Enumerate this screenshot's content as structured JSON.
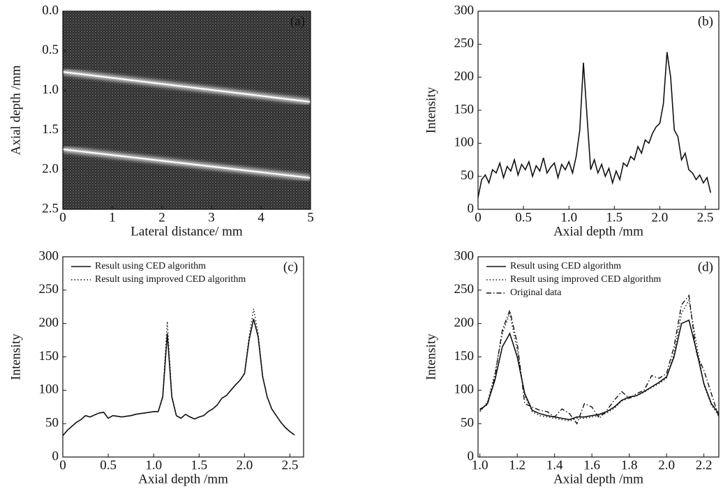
{
  "chart_data": [
    {
      "type": "image",
      "label": "(a)",
      "xlabel": "Lateral distance/ mm",
      "ylabel": "Axial depth /mm",
      "xlim": [
        0,
        5
      ],
      "ylim": [
        2.5,
        0
      ],
      "xticks": [
        0,
        1,
        2,
        3,
        4,
        5
      ],
      "yticks": [
        {
          "value": 0,
          "label": "0.0"
        },
        0.5,
        {
          "value": 1,
          "label": "1.0"
        },
        1.5,
        {
          "value": 2,
          "label": "2.0"
        },
        2.5
      ]
    },
    {
      "type": "line",
      "label": "(b)",
      "xlabel": "Axial depth /mm",
      "ylabel": "Intensity",
      "xlim": [
        0,
        2.65
      ],
      "ylim": [
        0,
        300
      ],
      "xticks": [
        0,
        0.5,
        {
          "value": 1,
          "label": "1.0"
        },
        1.5,
        {
          "value": 2,
          "label": "2.0"
        },
        2.5
      ],
      "yticks": [
        0,
        50,
        100,
        150,
        200,
        250,
        300
      ],
      "x": [
        0,
        0.04,
        0.08,
        0.12,
        0.16,
        0.2,
        0.24,
        0.28,
        0.32,
        0.36,
        0.4,
        0.44,
        0.48,
        0.52,
        0.56,
        0.6,
        0.64,
        0.68,
        0.72,
        0.76,
        0.8,
        0.84,
        0.88,
        0.92,
        0.96,
        1.0,
        1.04,
        1.08,
        1.12,
        1.16,
        1.2,
        1.24,
        1.28,
        1.32,
        1.36,
        1.4,
        1.44,
        1.48,
        1.52,
        1.56,
        1.6,
        1.64,
        1.68,
        1.72,
        1.76,
        1.8,
        1.84,
        1.88,
        1.92,
        1.96,
        2.0,
        2.04,
        2.08,
        2.12,
        2.16,
        2.2,
        2.24,
        2.28,
        2.32,
        2.36,
        2.4,
        2.44,
        2.48,
        2.52,
        2.56
      ],
      "series": [
        {
          "color": "#111111",
          "style": "solid",
          "values": [
            18,
            45,
            52,
            40,
            60,
            55,
            70,
            48,
            65,
            58,
            75,
            52,
            68,
            60,
            72,
            50,
            66,
            58,
            78,
            55,
            64,
            70,
            48,
            68,
            60,
            72,
            55,
            80,
            120,
            222,
            140,
            60,
            75,
            55,
            68,
            50,
            62,
            40,
            58,
            45,
            70,
            65,
            80,
            75,
            95,
            85,
            105,
            100,
            115,
            125,
            130,
            160,
            238,
            200,
            120,
            110,
            75,
            85,
            60,
            55,
            45,
            52,
            40,
            48,
            25
          ]
        }
      ]
    },
    {
      "type": "line",
      "label": "(c)",
      "xlabel": "Axial depth /mm",
      "ylabel": "Intensity",
      "xlim": [
        0,
        2.65
      ],
      "ylim": [
        0,
        300
      ],
      "xticks": [
        0,
        0.5,
        {
          "value": 1,
          "label": "1.0"
        },
        1.5,
        {
          "value": 2,
          "label": "2.0"
        },
        2.5
      ],
      "yticks": [
        0,
        50,
        100,
        150,
        200,
        250,
        300
      ],
      "x": [
        0,
        0.05,
        0.1,
        0.15,
        0.2,
        0.25,
        0.3,
        0.35,
        0.4,
        0.45,
        0.5,
        0.55,
        0.6,
        0.65,
        0.7,
        0.75,
        0.8,
        0.85,
        0.9,
        0.95,
        1.0,
        1.05,
        1.1,
        1.15,
        1.2,
        1.25,
        1.3,
        1.35,
        1.4,
        1.45,
        1.5,
        1.55,
        1.6,
        1.65,
        1.7,
        1.75,
        1.8,
        1.85,
        1.9,
        1.95,
        2.0,
        2.05,
        2.1,
        2.15,
        2.2,
        2.25,
        2.3,
        2.35,
        2.4,
        2.45,
        2.5,
        2.55
      ],
      "series": [
        {
          "name": "Result using CED algorithm",
          "color": "#111111",
          "style": "solid",
          "values": [
            32,
            40,
            46,
            52,
            56,
            62,
            60,
            63,
            66,
            67,
            58,
            62,
            61,
            60,
            61,
            62,
            64,
            65,
            66,
            67,
            68,
            68,
            90,
            185,
            90,
            62,
            58,
            64,
            60,
            57,
            60,
            62,
            68,
            72,
            78,
            88,
            92,
            100,
            108,
            115,
            125,
            175,
            207,
            180,
            120,
            90,
            72,
            62,
            52,
            44,
            38,
            33
          ]
        },
        {
          "name": "Result using improved CED algorithm",
          "color": "#111111",
          "style": "dotted",
          "values": [
            32,
            40,
            46,
            52,
            56,
            62,
            60,
            63,
            66,
            67,
            58,
            62,
            61,
            60,
            61,
            62,
            64,
            65,
            66,
            67,
            68,
            68,
            92,
            203,
            92,
            62,
            58,
            64,
            60,
            57,
            60,
            62,
            68,
            72,
            78,
            88,
            92,
            100,
            108,
            115,
            126,
            180,
            222,
            185,
            121,
            90,
            72,
            62,
            52,
            44,
            38,
            33
          ]
        }
      ]
    },
    {
      "type": "line",
      "label": "(d)",
      "xlabel": "Axial depth /mm",
      "ylabel": "Intensity",
      "xlim": [
        0.99,
        2.28
      ],
      "ylim": [
        0,
        300
      ],
      "xticks": [
        {
          "value": 1,
          "label": "1.0"
        },
        1.2,
        1.4,
        1.6,
        1.8,
        {
          "value": 2,
          "label": "2.0"
        },
        2.2
      ],
      "yticks": [
        0,
        50,
        100,
        150,
        200,
        250,
        300
      ],
      "x": [
        1.0,
        1.04,
        1.08,
        1.12,
        1.16,
        1.2,
        1.24,
        1.28,
        1.32,
        1.36,
        1.4,
        1.44,
        1.48,
        1.52,
        1.56,
        1.6,
        1.64,
        1.68,
        1.72,
        1.76,
        1.8,
        1.84,
        1.88,
        1.92,
        1.96,
        2.0,
        2.04,
        2.08,
        2.12,
        2.16,
        2.2,
        2.24,
        2.28
      ],
      "series": [
        {
          "name": "Result using CED algorithm",
          "color": "#111111",
          "style": "solid",
          "values": [
            70,
            80,
            115,
            165,
            185,
            150,
            95,
            70,
            65,
            62,
            60,
            58,
            56,
            60,
            60,
            62,
            64,
            68,
            75,
            85,
            90,
            92,
            98,
            105,
            112,
            120,
            150,
            200,
            205,
            160,
            110,
            80,
            65
          ]
        },
        {
          "name": "Result using improved CED algorithm",
          "color": "#111111",
          "style": "dotted",
          "values": [
            68,
            82,
            125,
            185,
            215,
            160,
            92,
            68,
            62,
            60,
            58,
            56,
            54,
            58,
            58,
            60,
            62,
            66,
            73,
            84,
            88,
            92,
            97,
            104,
            110,
            118,
            155,
            215,
            235,
            170,
            108,
            78,
            62
          ]
        },
        {
          "name": "Original data",
          "color": "#111111",
          "style": "dashdot",
          "values": [
            72,
            78,
            120,
            190,
            220,
            170,
            80,
            75,
            70,
            68,
            60,
            72,
            65,
            50,
            80,
            75,
            58,
            70,
            85,
            98,
            88,
            95,
            100,
            122,
            118,
            125,
            165,
            228,
            242,
            155,
            130,
            95,
            60
          ]
        }
      ]
    }
  ]
}
